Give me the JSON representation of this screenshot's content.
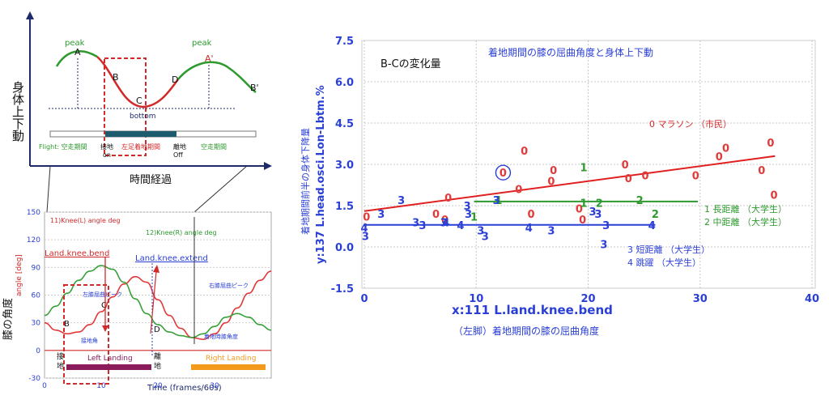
{
  "top_diagram": {
    "ylabel": "身体上下動",
    "xlabel": "時間経過",
    "peak_left": "peak",
    "peak_right": "peak",
    "point_A": "A",
    "point_B": "B",
    "point_C": "C",
    "point_D": "D",
    "point_A2": "A'",
    "point_B2": "B'",
    "bottom": "bottom",
    "flight_left": "Flight: 空走期間",
    "landing": "左足着地期間",
    "flight_right": "空走期間",
    "touchdown_1": "接地",
    "touchdown_2": "on",
    "toeoff_1": "離地",
    "toeoff_2": "Off"
  },
  "knee_chart": {
    "ylabel1": "膝の角度",
    "ylabel2": "angle [deg]",
    "xlabel": "Time (frames/60s)",
    "series_left": "11)Knee(L) angle deg",
    "series_right": "12)Knee(R) angle deg",
    "ann_bend": "Land.knee.bend",
    "ann_extend": "Land.knee.extend",
    "ann_left_peak": "左膝屈曲ピーク",
    "ann_right_peak": "右膝屈曲ピーク",
    "ann_touch_angle": "接地角",
    "ann_touch_knee": "着地時膝角度",
    "pt_B": "B",
    "pt_C": "C",
    "pt_D": "D",
    "left_landing": "Left Landing",
    "right_landing": "Right Landing",
    "touch_1": "接",
    "touch_2": "地",
    "off_1": "離",
    "off_2": "地",
    "colors": {
      "left": "#e03a3a",
      "right": "#3aa03a",
      "left_bar": "#8b1c5c",
      "right_bar": "#f39a1c"
    }
  },
  "scatter_header": {
    "label": "B-Cの変化量",
    "title": "着地期間の膝の屈曲角度と身体上下動",
    "legend": [
      "0 マラソン （市民）",
      "1 長距離 （大学生）",
      "2 中距離 （大学生）",
      "3 短距離 （大学生）",
      "4 跳躍 （大学生）"
    ],
    "ylabel_1": "着地期間前半の身体下降量",
    "ylabel_2": "y:137 L.head.osci.Lon-Lbtm.%",
    "xlabel": "x:111 L.land.knee.bend",
    "xlabel_jp": "（左脚）着地期間の膝の屈曲角度"
  },
  "chart_data": [
    {
      "type": "line",
      "title": "",
      "xlabel": "Time (frames/60s)",
      "ylabel": "angle [deg]",
      "xlim": [
        0,
        40
      ],
      "ylim": [
        -30,
        150
      ],
      "x_ticks": [
        "0",
        "10",
        "20",
        "30"
      ],
      "y_ticks": [
        "150",
        "120",
        "90",
        "60",
        "30",
        "0",
        "-30"
      ],
      "series": [
        {
          "name": "11)Knee(L) angle deg",
          "x": [
            0,
            2,
            4,
            6,
            8,
            10,
            12,
            14,
            16,
            18,
            20,
            22,
            24,
            26,
            28,
            30,
            32,
            34,
            36,
            38,
            40
          ],
          "values": [
            30,
            22,
            18,
            20,
            28,
            42,
            58,
            72,
            80,
            74,
            55,
            38,
            24,
            14,
            12,
            18,
            30,
            46,
            62,
            76,
            86
          ]
        },
        {
          "name": "12)Knee(R) angle deg",
          "x": [
            0,
            2,
            4,
            6,
            8,
            10,
            12,
            14,
            16,
            18,
            20,
            22,
            24,
            26,
            28,
            30,
            32,
            34,
            36,
            38,
            40
          ],
          "values": [
            38,
            48,
            62,
            76,
            86,
            92,
            88,
            74,
            56,
            40,
            28,
            20,
            16,
            14,
            18,
            26,
            36,
            40,
            36,
            28,
            22
          ]
        }
      ]
    },
    {
      "type": "scatter",
      "title": "着地期間の膝の屈曲角度と身体上下動",
      "xlabel": "x:111 L.land.knee.bend",
      "ylabel": "y:137 L.head.osci.Lon-Lbtm.%",
      "xlim": [
        0,
        40
      ],
      "ylim": [
        -1.5,
        7.5
      ],
      "x_ticks": [
        "0",
        "10",
        "20",
        "30",
        "40"
      ],
      "y_ticks": [
        "7.5",
        "6.0",
        "4.5",
        "3.0",
        "1.5",
        "0.0",
        "-1.5"
      ],
      "grid": true,
      "series": [
        {
          "name": "0 マラソン （市民）",
          "marker": "0",
          "color": "#e03a3a",
          "points": [
            [
              0.2,
              1.1
            ],
            [
              6.4,
              1.2
            ],
            [
              7.2,
              1.0
            ],
            [
              7.5,
              1.8
            ],
            [
              12.4,
              2.7
            ],
            [
              13.8,
              2.1
            ],
            [
              14.3,
              3.5
            ],
            [
              14.9,
              1.2
            ],
            [
              16.9,
              2.8
            ],
            [
              16.7,
              2.4
            ],
            [
              19.2,
              1.4
            ],
            [
              19.5,
              1.0
            ],
            [
              23.3,
              3.0
            ],
            [
              23.6,
              2.5
            ],
            [
              25.1,
              2.6
            ],
            [
              29.6,
              2.6
            ],
            [
              31.7,
              3.3
            ],
            [
              32.3,
              3.6
            ],
            [
              35.5,
              2.8
            ],
            [
              36.3,
              3.8
            ],
            [
              36.6,
              1.9
            ]
          ],
          "trend": [
            [
              0,
              1.3
            ],
            [
              36.7,
              3.3
            ]
          ]
        },
        {
          "name": "1 長距離 （大学生）",
          "marker": "1",
          "color": "#2e9a2e",
          "points": [
            [
              9.8,
              1.1
            ],
            [
              12.0,
              1.7
            ],
            [
              19.6,
              1.6
            ],
            [
              19.6,
              2.9
            ]
          ],
          "trend": [
            [
              9.8,
              1.65
            ],
            [
              29.8,
              1.65
            ]
          ]
        },
        {
          "name": "2 中距離 （大学生）",
          "marker": "2",
          "color": "#2e9a2e",
          "points": [
            [
              21.0,
              1.6
            ],
            [
              24.6,
              1.7
            ],
            [
              26.0,
              1.2
            ]
          ]
        },
        {
          "name": "3 短距離 （大学生）",
          "marker": "3",
          "color": "#2a3fd6",
          "points": [
            [
              0.1,
              0.4
            ],
            [
              1.5,
              1.2
            ],
            [
              3.3,
              1.7
            ],
            [
              4.6,
              0.9
            ],
            [
              5.2,
              0.8
            ],
            [
              7.1,
              0.9
            ],
            [
              9.2,
              1.5
            ],
            [
              9.3,
              1.2
            ],
            [
              10.4,
              0.6
            ],
            [
              10.8,
              0.4
            ],
            [
              11.8,
              1.7
            ],
            [
              16.7,
              0.6
            ],
            [
              20.4,
              1.3
            ],
            [
              20.9,
              1.2
            ],
            [
              21.6,
              0.8
            ],
            [
              21.4,
              0.1
            ]
          ]
        },
        {
          "name": "4 跳躍 （大学生）",
          "marker": "4",
          "color": "#2a3fd6",
          "points": [
            [
              0,
              0.7
            ],
            [
              7.3,
              0.9
            ],
            [
              8.6,
              0.8
            ],
            [
              14.7,
              0.7
            ],
            [
              25.7,
              0.8
            ]
          ],
          "trend": [
            [
              0,
              0.8
            ],
            [
              26.0,
              0.8
            ]
          ]
        }
      ],
      "highlight_point": [
        12.4,
        2.7
      ]
    }
  ]
}
